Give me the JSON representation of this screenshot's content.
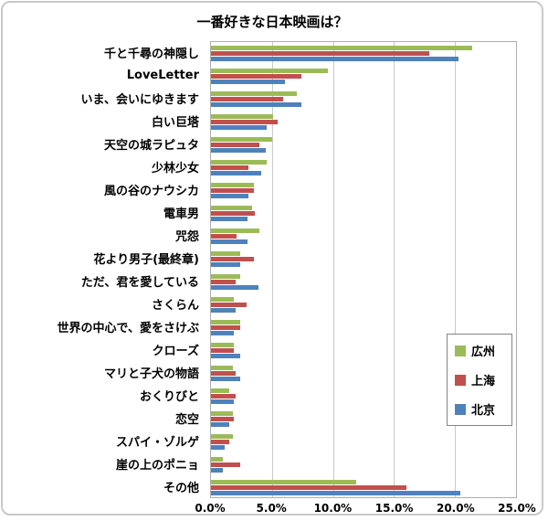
{
  "chart_data": {
    "type": "bar",
    "orientation": "horizontal",
    "title": "一番好きな日本映画は？",
    "categories": [
      "千と千尋の神隠し",
      "LoveLetter",
      "いま、会いにゆきます",
      "白い巨塔",
      "天空の城ラピュタ",
      "少林少女",
      "風の谷のナウシカ",
      "電車男",
      "咒怨",
      "花より男子(最終章)",
      "ただ、君を愛している",
      "さくらん",
      "世界の中心で、愛をさけぶ",
      "クローズ",
      "マリと子犬の物語",
      "おくりびと",
      "恋空",
      "スパイ・ゾルゲ",
      "崖の上のポニョ",
      "その他"
    ],
    "series": [
      {
        "name": "広州",
        "color": "#9BBB59",
        "values": [
          21.4,
          9.6,
          7.0,
          5.1,
          5.0,
          4.6,
          3.5,
          3.4,
          4.0,
          2.4,
          2.4,
          1.9,
          2.4,
          1.9,
          1.8,
          1.5,
          1.8,
          1.8,
          1.0,
          11.9
        ]
      },
      {
        "name": "上海",
        "color": "#C0504D",
        "values": [
          17.9,
          7.4,
          5.9,
          5.5,
          4.0,
          3.1,
          3.5,
          3.6,
          2.1,
          3.5,
          2.0,
          2.9,
          2.4,
          1.9,
          2.0,
          2.0,
          1.9,
          1.5,
          2.4,
          16.0
        ]
      },
      {
        "name": "北京",
        "color": "#4F81BD",
        "values": [
          20.3,
          6.1,
          7.4,
          4.6,
          4.5,
          4.1,
          3.1,
          3.0,
          3.0,
          2.4,
          3.9,
          2.0,
          1.9,
          2.4,
          2.4,
          1.9,
          1.5,
          1.1,
          1.0,
          20.4
        ]
      }
    ],
    "xlim": [
      0,
      25
    ],
    "x_ticks": [
      0,
      5,
      10,
      15,
      20,
      25
    ],
    "x_tick_labels": [
      "0.0%",
      "5.0%",
      "10.0%",
      "15.0%",
      "20.0%",
      "25.0%"
    ],
    "grid": true,
    "legend_position": "right-inside"
  }
}
